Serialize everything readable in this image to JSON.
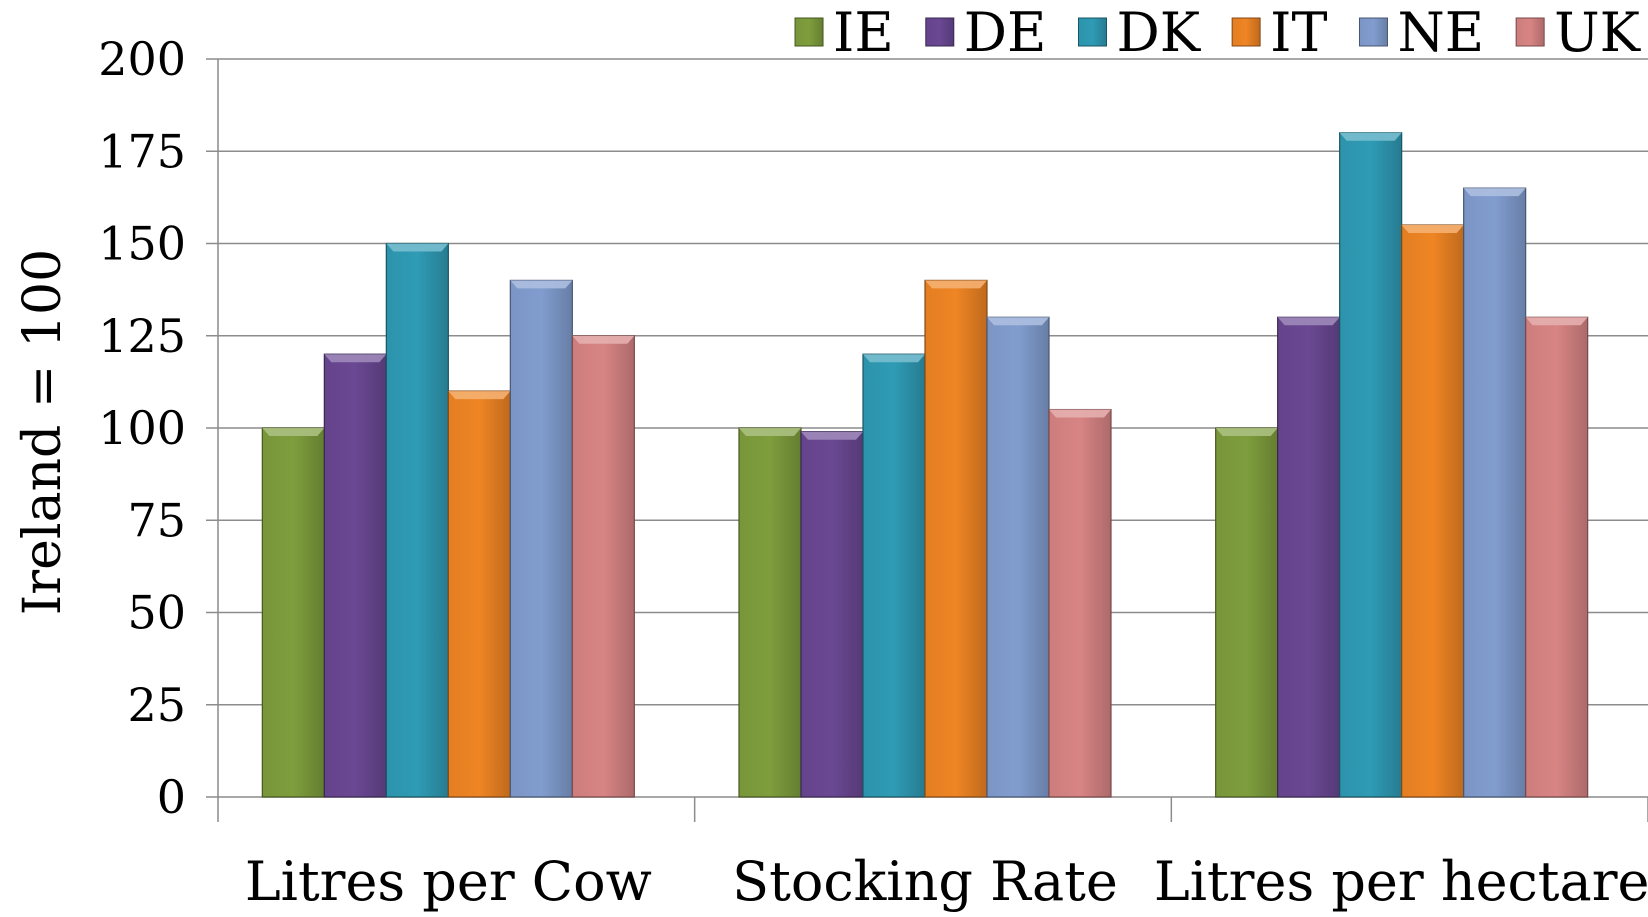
{
  "chart_data": {
    "type": "bar",
    "categories": [
      "Litres per Cow",
      "Stocking Rate",
      "Litres per hectare"
    ],
    "series": [
      {
        "name": "IE",
        "color": "#7e9e3d",
        "values": [
          100,
          100,
          100
        ]
      },
      {
        "name": "DE",
        "color": "#6a4893",
        "values": [
          120,
          99,
          130
        ]
      },
      {
        "name": "DK",
        "color": "#2f9bb5",
        "values": [
          150,
          120,
          180
        ]
      },
      {
        "name": "IT",
        "color": "#ef8524",
        "values": [
          110,
          140,
          155
        ]
      },
      {
        "name": "NE",
        "color": "#819dcf",
        "values": [
          140,
          130,
          165
        ]
      },
      {
        "name": "UK",
        "color": "#d88484",
        "values": [
          125,
          105,
          130
        ]
      }
    ],
    "title": "",
    "xlabel": "",
    "ylabel": "Ireland = 100",
    "ylim": [
      0,
      200
    ],
    "yticks": [
      "0",
      "25",
      "50",
      "75",
      "100",
      "125",
      "150",
      "175",
      "200"
    ],
    "grid": true,
    "legend_position": "top-right"
  }
}
